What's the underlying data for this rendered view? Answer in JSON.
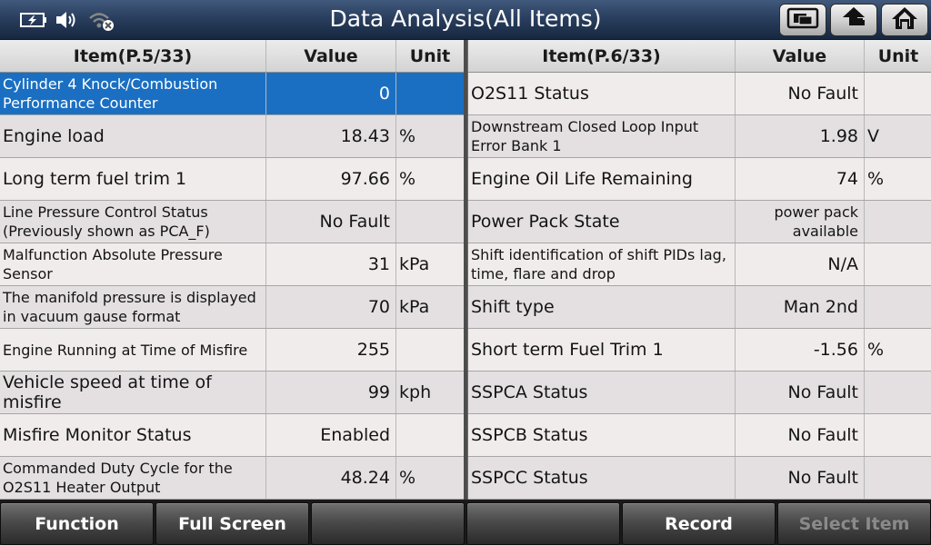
{
  "header": {
    "title": "Data Analysis(All Items)",
    "status_icons": [
      "battery-charging-icon",
      "speaker-icon",
      "wifi-off-icon"
    ],
    "buttons": [
      "screenshot-icon",
      "back-arrow-icon",
      "home-icon"
    ]
  },
  "left_table": {
    "headers": {
      "item": "Item(P.5/33)",
      "value": "Value",
      "unit": "Unit"
    },
    "rows": [
      {
        "item": "Cylinder 4 Knock/Combustion Performance Counter",
        "value": "0",
        "unit": "",
        "selected": true
      },
      {
        "item": "Engine load",
        "value": "18.43",
        "unit": "%"
      },
      {
        "item": "Long term fuel trim 1",
        "value": "97.66",
        "unit": "%"
      },
      {
        "item": "Line Pressure Control Status (Previously shown as PCA_F)",
        "value": "No Fault",
        "unit": ""
      },
      {
        "item": "Malfunction Absolute Pressure Sensor",
        "value": "31",
        "unit": "kPa"
      },
      {
        "item": "The manifold pressure is displayed in vacuum gause format",
        "value": "70",
        "unit": "kPa"
      },
      {
        "item": "Engine Running at Time of Misfire",
        "value": "255",
        "unit": ""
      },
      {
        "item": "Vehicle speed at time of misfire",
        "value": "99",
        "unit": "kph"
      },
      {
        "item": "Misfire Monitor Status",
        "value": "Enabled",
        "unit": ""
      },
      {
        "item": "Commanded Duty Cycle for the O2S11 Heater Output",
        "value": "48.24",
        "unit": "%"
      }
    ]
  },
  "right_table": {
    "headers": {
      "item": "Item(P.6/33)",
      "value": "Value",
      "unit": "Unit"
    },
    "rows": [
      {
        "item": "O2S11 Status",
        "value": "No Fault",
        "unit": ""
      },
      {
        "item": "Downstream Closed Loop Input Error Bank 1",
        "value": "1.98",
        "unit": "V"
      },
      {
        "item": "Engine Oil Life Remaining",
        "value": "74",
        "unit": "%"
      },
      {
        "item": "Power Pack State",
        "value": "power pack available",
        "unit": ""
      },
      {
        "item": "Shift identification of shift PIDs lag, time, flare and drop",
        "value": "N/A",
        "unit": ""
      },
      {
        "item": "Shift type",
        "value": "Man 2nd",
        "unit": ""
      },
      {
        "item": "Short term Fuel Trim 1",
        "value": "-1.56",
        "unit": "%"
      },
      {
        "item": "SSPCA Status",
        "value": "No Fault",
        "unit": ""
      },
      {
        "item": "SSPCB Status",
        "value": "No Fault",
        "unit": ""
      },
      {
        "item": "SSPCC Status",
        "value": "No Fault",
        "unit": ""
      }
    ]
  },
  "bottom_bar": {
    "buttons": [
      {
        "label": "Function",
        "enabled": true
      },
      {
        "label": "Full Screen",
        "enabled": true
      },
      {
        "label": "",
        "enabled": false
      },
      {
        "label": "",
        "enabled": false
      },
      {
        "label": "Record",
        "enabled": true
      },
      {
        "label": "Select Item",
        "enabled": false
      }
    ]
  },
  "colors": {
    "selected_row": "#1a6fc2",
    "row_odd": "#f1ecec",
    "row_even": "#e4e0e1",
    "title_text": "#ffffff"
  }
}
